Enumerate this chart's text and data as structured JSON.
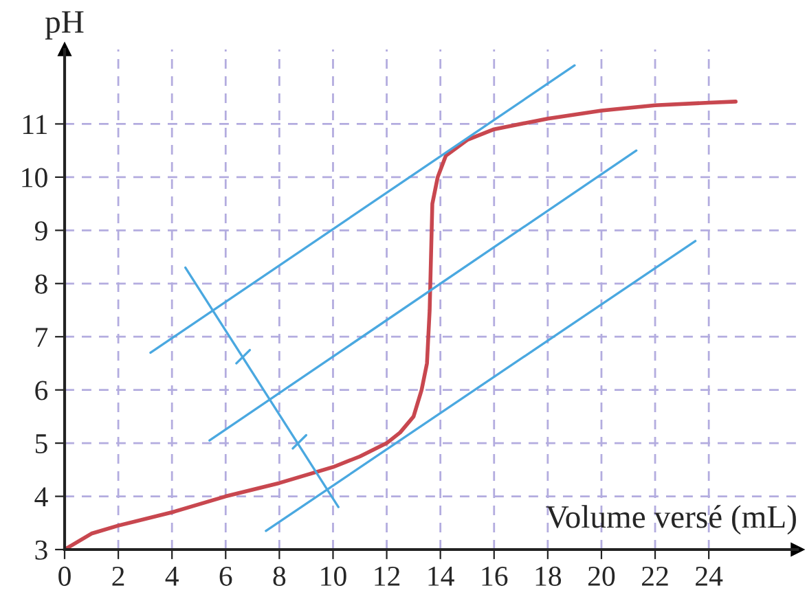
{
  "chart_data": {
    "type": "line",
    "xlabel": "Volume versé (mL)",
    "ylabel": "pH",
    "xlim": [
      0,
      27.3
    ],
    "ylim": [
      3,
      12.4
    ],
    "xticks": [
      0,
      2,
      4,
      6,
      8,
      10,
      12,
      14,
      16,
      18,
      20,
      22,
      24
    ],
    "yticks": [
      3,
      4,
      5,
      6,
      7,
      8,
      9,
      10,
      11
    ],
    "grid": true,
    "marker": "none",
    "line_style": "solid",
    "series": [
      {
        "color": "#c8474f",
        "x": [
          0,
          1,
          2,
          4,
          6,
          8,
          10,
          11,
          12,
          12.5,
          13,
          13.3,
          13.5,
          13.6,
          13.65,
          13.7,
          13.9,
          14.2,
          15,
          16,
          18,
          20,
          22,
          24,
          25
        ],
        "values": [
          3,
          3.3,
          3.45,
          3.7,
          4,
          4.25,
          4.55,
          4.75,
          5,
          5.2,
          5.5,
          6,
          6.5,
          7.5,
          8.5,
          9.5,
          10,
          10.4,
          10.7,
          10.9,
          11.1,
          11.25,
          11.35,
          11.4,
          11.42
        ]
      },
      {
        "color": "#4aa8e0",
        "x": [
          3.2,
          19
        ],
        "values": [
          6.7,
          12.1
        ]
      },
      {
        "color": "#4aa8e0",
        "x": [
          5.4,
          21.3
        ],
        "values": [
          5.05,
          10.5
        ]
      },
      {
        "color": "#4aa8e0",
        "x": [
          7.5,
          23.5
        ],
        "values": [
          3.35,
          8.8
        ]
      },
      {
        "color": "#4aa8e0",
        "x": [
          4.5,
          10.2
        ],
        "values": [
          8.3,
          3.8
        ]
      },
      {
        "color": "#4aa8e0",
        "x": [
          6.4,
          6.9
        ],
        "values": [
          6.5,
          6.75
        ]
      },
      {
        "color": "#4aa8e0",
        "x": [
          8.5,
          9.0
        ],
        "values": [
          4.9,
          5.15
        ]
      }
    ]
  }
}
